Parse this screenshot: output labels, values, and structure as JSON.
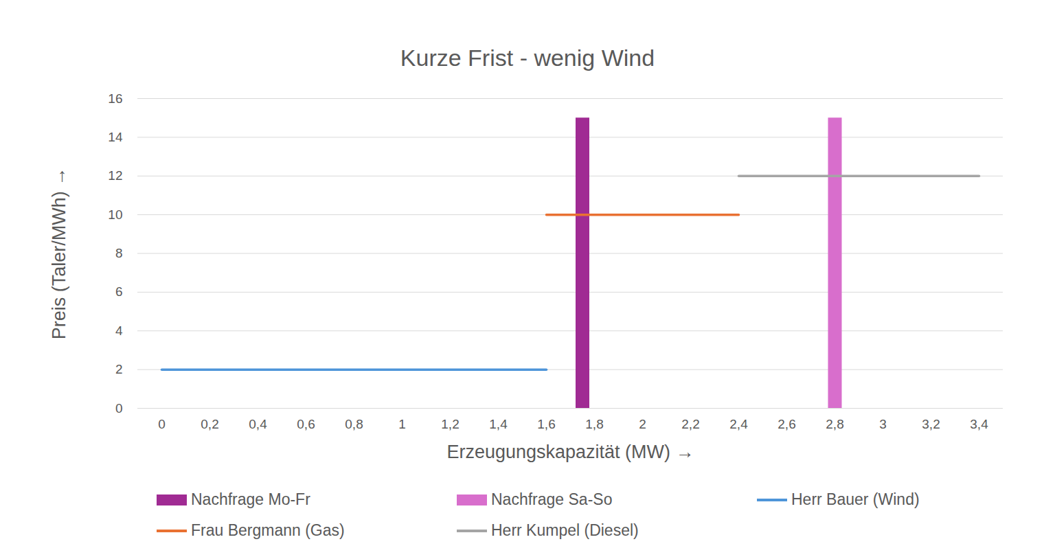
{
  "chart_data": {
    "type": "line",
    "title": "Kurze Frist - wenig Wind",
    "x_label": "Erzeugungskapazität (MW)",
    "y_label": "Preis (Taler/MWh)",
    "xlim": [
      -0.1,
      3.5
    ],
    "xticks": [
      0,
      {
        "value": 0.2,
        "label": "0,2"
      },
      {
        "value": 0.4,
        "label": "0,4"
      },
      {
        "value": 0.6,
        "label": "0,6"
      },
      {
        "value": 0.8,
        "label": "0,8"
      },
      1,
      {
        "value": 1.2,
        "label": "1,2"
      },
      {
        "value": 1.4,
        "label": "1,4"
      },
      {
        "value": 1.6,
        "label": "1,6"
      },
      {
        "value": 1.8,
        "label": "1,8"
      },
      2,
      {
        "value": 2.2,
        "label": "2,2"
      },
      {
        "value": 2.4,
        "label": "2,4"
      },
      {
        "value": 2.6,
        "label": "2,6"
      },
      {
        "value": 2.8,
        "label": "2,8"
      },
      3,
      {
        "value": 3.2,
        "label": "3,2"
      },
      {
        "value": 3.4,
        "label": "3,4"
      }
    ],
    "ylim": [
      0,
      16
    ],
    "yticks": [
      0,
      2,
      4,
      6,
      8,
      10,
      12,
      14,
      16
    ],
    "grid": "y",
    "legend": "bottom",
    "series": [
      {
        "name": "Nachfrage Mo-Fr",
        "type": "bar",
        "color": "#a02b93",
        "x": [
          1.75
        ],
        "values": [
          15
        ]
      },
      {
        "name": "Nachfrage Sa-So",
        "type": "bar",
        "color": "#d86ecc",
        "x": [
          2.8
        ],
        "values": [
          15
        ]
      },
      {
        "name": "Herr Bauer (Wind)",
        "type": "line",
        "color": "#4e95d9",
        "x": [
          0,
          1.6
        ],
        "values": [
          2,
          2
        ]
      },
      {
        "name": "Frau Bergmann (Gas)",
        "type": "line",
        "color": "#e97132",
        "x": [
          1.6,
          2.4
        ],
        "values": [
          10,
          10
        ]
      },
      {
        "name": "Herr Kumpel (Diesel)",
        "type": "line",
        "color": "#a5a5a5",
        "x": [
          2.4,
          3.4
        ],
        "values": [
          12,
          12
        ]
      }
    ]
  }
}
